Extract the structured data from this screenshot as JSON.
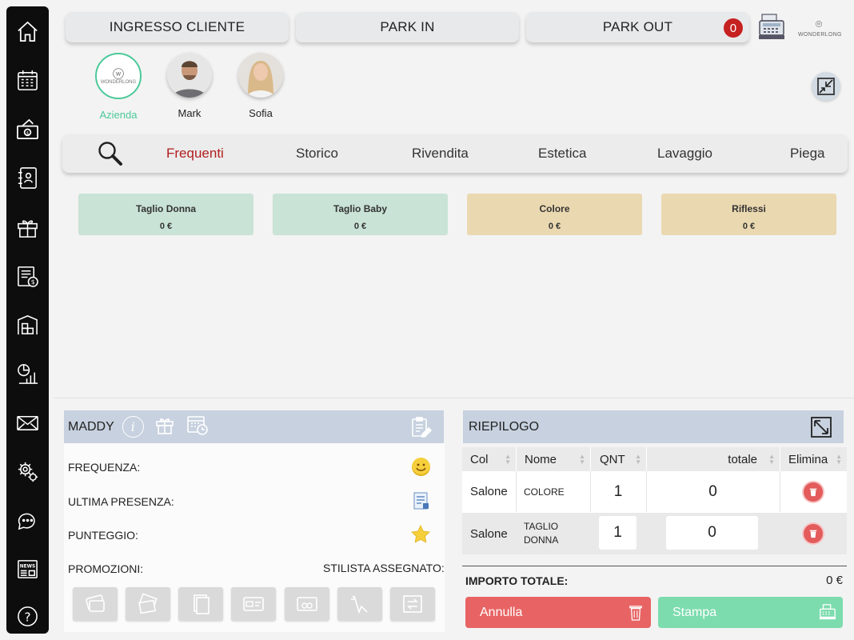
{
  "top_buttons": {
    "ingresso": "INGRESSO CLIENTE",
    "park_in": "PARK IN",
    "park_out": "PARK OUT",
    "park_out_count": "0"
  },
  "brand": {
    "logo_text": "WONDERLONG"
  },
  "staff": [
    {
      "name": "Azienda"
    },
    {
      "name": "Mark"
    },
    {
      "name": "Sofia"
    }
  ],
  "categories": [
    "Frequenti",
    "Storico",
    "Rivendita",
    "Estetica",
    "Lavaggio",
    "Piega"
  ],
  "services": [
    {
      "name": "Taglio Donna",
      "price": "0 €"
    },
    {
      "name": "Taglio Baby",
      "price": "0 €"
    },
    {
      "name": "Colore",
      "price": "0 €"
    },
    {
      "name": "Riflessi",
      "price": "0 €"
    }
  ],
  "client": {
    "name": "MADDY",
    "frequenza": "FREQUENZA:",
    "ultima_presenza": "ULTIMA PRESENZA:",
    "punteggio": "PUNTEGGIO:",
    "promozioni": "PROMOZIONI:",
    "stilista": "STILISTA ASSEGNATO:"
  },
  "summary": {
    "title": "RIEPILOGO",
    "headers": {
      "col": "Col",
      "nome": "Nome",
      "qnt": "QNT",
      "totale": "totale",
      "elimina": "Elimina"
    },
    "rows": [
      {
        "col": "Salone",
        "nome_line1": "COLORE",
        "nome_line2": "",
        "qnt": "1",
        "totale": "0"
      },
      {
        "col": "Salone",
        "nome_line1": "TAGLIO",
        "nome_line2": "DONNA",
        "qnt": "1",
        "totale": "0"
      }
    ],
    "importo_label": "IMPORTO TOTALE:",
    "importo_value": "0 €",
    "annulla": "Annulla",
    "stampa": "Stampa"
  },
  "colors": {
    "accent_green": "#4bc99a",
    "active_red": "#b11e1e",
    "annulla": "#e86464",
    "stampa": "#7ddcae",
    "panel_head": "#c7d1df"
  }
}
